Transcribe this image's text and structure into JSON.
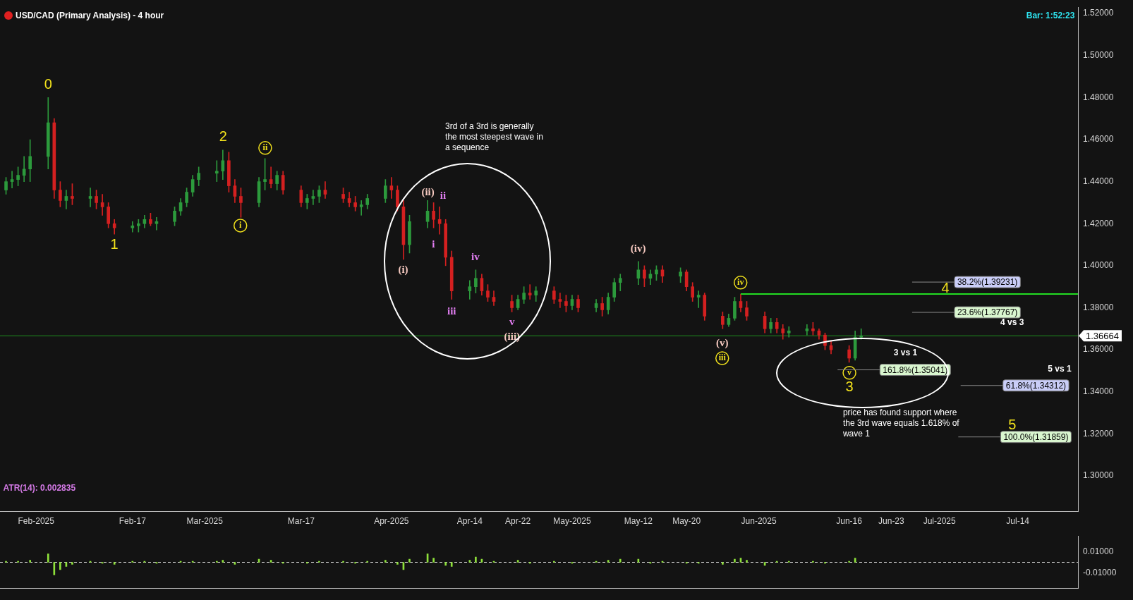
{
  "chart_data": [
    {
      "type": "candlestick",
      "title": "USD/CAD (Primary Analysis) - 4 hour",
      "x": [
        "2025-01-27",
        "2025-01-28",
        "2025-01-29",
        "2025-01-30",
        "2025-01-31",
        "2025-02-03",
        "2025-02-04",
        "2025-02-05",
        "2025-02-06",
        "2025-02-07",
        "2025-02-10",
        "2025-02-11",
        "2025-02-12",
        "2025-02-13",
        "2025-02-14",
        "2025-02-17",
        "2025-02-18",
        "2025-02-19",
        "2025-02-20",
        "2025-02-21",
        "2025-02-24",
        "2025-02-25",
        "2025-02-26",
        "2025-02-27",
        "2025-02-28",
        "2025-03-03",
        "2025-03-04",
        "2025-03-05",
        "2025-03-06",
        "2025-03-07",
        "2025-03-10",
        "2025-03-11",
        "2025-03-12",
        "2025-03-13",
        "2025-03-14",
        "2025-03-17",
        "2025-03-18",
        "2025-03-19",
        "2025-03-20",
        "2025-03-21",
        "2025-03-24",
        "2025-03-25",
        "2025-03-26",
        "2025-03-27",
        "2025-03-28",
        "2025-03-31",
        "2025-04-01",
        "2025-04-02",
        "2025-04-03",
        "2025-04-04",
        "2025-04-07",
        "2025-04-08",
        "2025-04-09",
        "2025-04-10",
        "2025-04-11",
        "2025-04-14",
        "2025-04-15",
        "2025-04-16",
        "2025-04-17",
        "2025-04-18",
        "2025-04-21",
        "2025-04-22",
        "2025-04-23",
        "2025-04-24",
        "2025-04-25",
        "2025-04-28",
        "2025-04-29",
        "2025-04-30",
        "2025-05-01",
        "2025-05-02",
        "2025-05-05",
        "2025-05-06",
        "2025-05-07",
        "2025-05-08",
        "2025-05-09",
        "2025-05-12",
        "2025-05-13",
        "2025-05-14",
        "2025-05-15",
        "2025-05-16",
        "2025-05-19",
        "2025-05-20",
        "2025-05-21",
        "2025-05-22",
        "2025-05-23",
        "2025-05-26",
        "2025-05-27",
        "2025-05-28",
        "2025-05-29",
        "2025-05-30",
        "2025-06-02",
        "2025-06-03",
        "2025-06-04",
        "2025-06-05",
        "2025-06-06",
        "2025-06-09",
        "2025-06-10",
        "2025-06-11",
        "2025-06-12",
        "2025-06-13",
        "2025-06-16",
        "2025-06-17",
        "2025-06-18"
      ],
      "ohlc": [
        [
          1.436,
          1.442,
          1.434,
          1.44
        ],
        [
          1.44,
          1.445,
          1.437,
          1.441
        ],
        [
          1.441,
          1.447,
          1.438,
          1.443
        ],
        [
          1.443,
          1.452,
          1.44,
          1.446
        ],
        [
          1.446,
          1.46,
          1.44,
          1.452
        ],
        [
          1.452,
          1.48,
          1.446,
          1.468
        ],
        [
          1.468,
          1.47,
          1.432,
          1.436
        ],
        [
          1.436,
          1.44,
          1.428,
          1.431
        ],
        [
          1.431,
          1.436,
          1.427,
          1.433
        ],
        [
          1.433,
          1.439,
          1.429,
          1.432
        ],
        [
          1.432,
          1.437,
          1.428,
          1.433
        ],
        [
          1.433,
          1.436,
          1.427,
          1.43
        ],
        [
          1.43,
          1.434,
          1.424,
          1.428
        ],
        [
          1.428,
          1.43,
          1.418,
          1.42
        ],
        [
          1.42,
          1.422,
          1.415,
          1.418
        ],
        [
          1.418,
          1.421,
          1.416,
          1.419
        ],
        [
          1.419,
          1.422,
          1.416,
          1.42
        ],
        [
          1.42,
          1.424,
          1.418,
          1.422
        ],
        [
          1.422,
          1.425,
          1.419,
          1.42
        ],
        [
          1.42,
          1.423,
          1.417,
          1.421
        ],
        [
          1.421,
          1.428,
          1.419,
          1.426
        ],
        [
          1.426,
          1.432,
          1.424,
          1.43
        ],
        [
          1.43,
          1.437,
          1.428,
          1.435
        ],
        [
          1.435,
          1.443,
          1.433,
          1.441
        ],
        [
          1.441,
          1.447,
          1.438,
          1.444
        ],
        [
          1.444,
          1.45,
          1.44,
          1.445
        ],
        [
          1.445,
          1.455,
          1.441,
          1.45
        ],
        [
          1.45,
          1.454,
          1.435,
          1.438
        ],
        [
          1.438,
          1.441,
          1.43,
          1.433
        ],
        [
          1.433,
          1.437,
          1.423,
          1.43
        ],
        [
          1.43,
          1.442,
          1.428,
          1.44
        ],
        [
          1.44,
          1.451,
          1.436,
          1.441
        ],
        [
          1.441,
          1.447,
          1.437,
          1.439
        ],
        [
          1.439,
          1.445,
          1.436,
          1.443
        ],
        [
          1.443,
          1.445,
          1.434,
          1.436
        ],
        [
          1.436,
          1.438,
          1.428,
          1.43
        ],
        [
          1.43,
          1.434,
          1.427,
          1.432
        ],
        [
          1.432,
          1.436,
          1.429,
          1.433
        ],
        [
          1.433,
          1.438,
          1.43,
          1.436
        ],
        [
          1.436,
          1.44,
          1.432,
          1.434
        ],
        [
          1.434,
          1.437,
          1.43,
          1.432
        ],
        [
          1.432,
          1.435,
          1.428,
          1.43
        ],
        [
          1.43,
          1.433,
          1.426,
          1.428
        ],
        [
          1.428,
          1.431,
          1.424,
          1.429
        ],
        [
          1.429,
          1.434,
          1.427,
          1.432
        ],
        [
          1.432,
          1.441,
          1.43,
          1.438
        ],
        [
          1.438,
          1.442,
          1.432,
          1.436
        ],
        [
          1.436,
          1.438,
          1.426,
          1.428
        ],
        [
          1.428,
          1.431,
          1.403,
          1.41
        ],
        [
          1.41,
          1.424,
          1.406,
          1.421
        ],
        [
          1.421,
          1.431,
          1.418,
          1.426
        ],
        [
          1.426,
          1.43,
          1.418,
          1.422
        ],
        [
          1.422,
          1.428,
          1.415,
          1.42
        ],
        [
          1.42,
          1.422,
          1.4,
          1.404
        ],
        [
          1.404,
          1.407,
          1.384,
          1.388
        ],
        [
          1.388,
          1.393,
          1.384,
          1.39
        ],
        [
          1.39,
          1.398,
          1.387,
          1.394
        ],
        [
          1.394,
          1.396,
          1.386,
          1.388
        ],
        [
          1.388,
          1.391,
          1.383,
          1.385
        ],
        [
          1.385,
          1.388,
          1.381,
          1.383
        ],
        [
          1.383,
          1.386,
          1.378,
          1.38
        ],
        [
          1.38,
          1.386,
          1.379,
          1.384
        ],
        [
          1.384,
          1.39,
          1.382,
          1.387
        ],
        [
          1.387,
          1.391,
          1.384,
          1.386
        ],
        [
          1.386,
          1.39,
          1.383,
          1.388
        ],
        [
          1.388,
          1.39,
          1.382,
          1.384
        ],
        [
          1.384,
          1.387,
          1.38,
          1.383
        ],
        [
          1.383,
          1.386,
          1.378,
          1.381
        ],
        [
          1.381,
          1.386,
          1.379,
          1.384
        ],
        [
          1.384,
          1.386,
          1.378,
          1.38
        ],
        [
          1.38,
          1.384,
          1.378,
          1.382
        ],
        [
          1.382,
          1.385,
          1.376,
          1.379
        ],
        [
          1.379,
          1.387,
          1.377,
          1.385
        ],
        [
          1.385,
          1.394,
          1.383,
          1.392
        ],
        [
          1.392,
          1.396,
          1.388,
          1.394
        ],
        [
          1.394,
          1.402,
          1.391,
          1.398
        ],
        [
          1.398,
          1.4,
          1.39,
          1.394
        ],
        [
          1.394,
          1.398,
          1.391,
          1.396
        ],
        [
          1.396,
          1.4,
          1.393,
          1.398
        ],
        [
          1.398,
          1.4,
          1.392,
          1.395
        ],
        [
          1.395,
          1.399,
          1.392,
          1.397
        ],
        [
          1.397,
          1.398,
          1.388,
          1.39
        ],
        [
          1.39,
          1.392,
          1.383,
          1.385
        ],
        [
          1.385,
          1.388,
          1.38,
          1.386
        ],
        [
          1.386,
          1.387,
          1.374,
          1.376
        ],
        [
          1.376,
          1.378,
          1.37,
          1.372
        ],
        [
          1.372,
          1.377,
          1.371,
          1.375
        ],
        [
          1.375,
          1.385,
          1.374,
          1.383
        ],
        [
          1.383,
          1.3865,
          1.378,
          1.38
        ],
        [
          1.38,
          1.383,
          1.374,
          1.376
        ],
        [
          1.376,
          1.378,
          1.368,
          1.37
        ],
        [
          1.37,
          1.375,
          1.368,
          1.373
        ],
        [
          1.373,
          1.375,
          1.368,
          1.37
        ],
        [
          1.37,
          1.372,
          1.365,
          1.368
        ],
        [
          1.368,
          1.371,
          1.366,
          1.369
        ],
        [
          1.369,
          1.372,
          1.367,
          1.37
        ],
        [
          1.37,
          1.373,
          1.367,
          1.369
        ],
        [
          1.369,
          1.37,
          1.365,
          1.367
        ],
        [
          1.367,
          1.368,
          1.36,
          1.362
        ],
        [
          1.362,
          1.364,
          1.358,
          1.36
        ],
        [
          1.36,
          1.362,
          1.354,
          1.356
        ],
        [
          1.356,
          1.369,
          1.355,
          1.366
        ],
        [
          1.366,
          1.37,
          1.365,
          1.36664
        ]
      ],
      "series": [
        {
          "type": "line",
          "color": "#22dd22",
          "x": [
            "2025-05-29",
            "2025-07-24"
          ],
          "values": [
            1.3865,
            1.3865
          ]
        }
      ],
      "xlim": [
        "2025-01-26",
        "2025-07-24"
      ],
      "xticks": [
        {
          "value": "2025-02-01",
          "label": "Feb-2025"
        },
        {
          "value": "2025-02-17",
          "label": "Feb-17"
        },
        {
          "value": "2025-03-01",
          "label": "Mar-2025"
        },
        {
          "value": "2025-03-17",
          "label": "Mar-17"
        },
        {
          "value": "2025-04-01",
          "label": "Apr-2025"
        },
        {
          "value": "2025-04-14",
          "label": "Apr-14"
        },
        {
          "value": "2025-04-22",
          "label": "Apr-22"
        },
        {
          "value": "2025-05-01",
          "label": "May-2025"
        },
        {
          "value": "2025-05-12",
          "label": "May-12"
        },
        {
          "value": "2025-05-20",
          "label": "May-20"
        },
        {
          "value": "2025-06-01",
          "label": "Jun-2025"
        },
        {
          "value": "2025-06-16",
          "label": "Jun-16"
        },
        {
          "value": "2025-06-23",
          "label": "Jun-23"
        },
        {
          "value": "2025-07-01",
          "label": "Jul-2025"
        },
        {
          "value": "2025-07-14",
          "label": "Jul-14"
        }
      ],
      "ylim": [
        1.283,
        1.523
      ],
      "yticks": [
        {
          "value": 1.3,
          "label": "1.30000"
        },
        {
          "value": 1.32,
          "label": "1.32000"
        },
        {
          "value": 1.34,
          "label": "1.34000"
        },
        {
          "value": 1.36,
          "label": "1.36000"
        },
        {
          "value": 1.38,
          "label": "1.38000"
        },
        {
          "value": 1.4,
          "label": "1.40000"
        },
        {
          "value": 1.42,
          "label": "1.42000"
        },
        {
          "value": 1.44,
          "label": "1.44000"
        },
        {
          "value": 1.46,
          "label": "1.46000"
        },
        {
          "value": 1.48,
          "label": "1.48000"
        },
        {
          "value": 1.5,
          "label": "1.50000"
        },
        {
          "value": 1.52,
          "label": "1.52000"
        }
      ],
      "ref_lines": [
        {
          "axis": "y",
          "value": 1.36664,
          "label": "1.36664",
          "color": "#1f8f1f"
        }
      ],
      "annotations": [
        "Bar: 1:52:23",
        "ATR(14): 0.002835",
        "0",
        "1",
        "2",
        "i",
        "ii",
        "(i)",
        "(ii)",
        "i",
        "ii",
        "iii",
        "iv",
        "v",
        "(iii)",
        "(iv)",
        "(v)",
        "iii",
        "iv",
        "v",
        "3",
        "4",
        "5",
        "3rd of a 3rd is generally\nthe most steepest wave in\na sequence",
        "price has found support where\nthe 3rd wave equals 1.618% of\nwave 1",
        "4 vs 3",
        "3 vs 1",
        "5 vs 1",
        "38.2%(1.39231)",
        "23.6%(1.37767)",
        "161.8%(1.35041)",
        "61.8%(1.34312)",
        "100.0%(1.31859)"
      ]
    },
    {
      "type": "bar",
      "color": "#8ee03a",
      "x": [
        "2025-01-27",
        "2025-01-29",
        "2025-01-31",
        "2025-02-03",
        "2025-02-04",
        "2025-02-05",
        "2025-02-06",
        "2025-02-07",
        "2025-02-10",
        "2025-02-12",
        "2025-02-14",
        "2025-02-17",
        "2025-02-19",
        "2025-02-21",
        "2025-02-25",
        "2025-02-27",
        "2025-03-03",
        "2025-03-04",
        "2025-03-06",
        "2025-03-10",
        "2025-03-12",
        "2025-03-14",
        "2025-03-18",
        "2025-03-20",
        "2025-03-24",
        "2025-03-26",
        "2025-03-28",
        "2025-03-31",
        "2025-04-02",
        "2025-04-03",
        "2025-04-04",
        "2025-04-07",
        "2025-04-08",
        "2025-04-10",
        "2025-04-11",
        "2025-04-14",
        "2025-04-15",
        "2025-04-16",
        "2025-04-18",
        "2025-04-22",
        "2025-04-24",
        "2025-04-28",
        "2025-05-01",
        "2025-05-05",
        "2025-05-07",
        "2025-05-09",
        "2025-05-12",
        "2025-05-14",
        "2025-05-16",
        "2025-05-20",
        "2025-05-22",
        "2025-05-26",
        "2025-05-28",
        "2025-05-29",
        "2025-05-30",
        "2025-06-02",
        "2025-06-04",
        "2025-06-06",
        "2025-06-10",
        "2025-06-12",
        "2025-06-16",
        "2025-06-17"
      ],
      "values": [
        0.001,
        0.001,
        0.002,
        0.008,
        -0.012,
        -0.007,
        -0.004,
        -0.002,
        0.001,
        -0.001,
        -0.002,
        0.001,
        0.001,
        -0.001,
        0.001,
        0.001,
        0.001,
        0.002,
        -0.002,
        0.003,
        0.002,
        -0.001,
        -0.001,
        0.001,
        0.001,
        -0.001,
        0.001,
        0.002,
        -0.002,
        -0.007,
        0.003,
        0.008,
        0.004,
        -0.003,
        -0.004,
        0.002,
        0.005,
        0.003,
        0.001,
        0.002,
        -0.001,
        0.001,
        -0.001,
        0.001,
        0.002,
        0.003,
        0.003,
        -0.001,
        0.001,
        -0.001,
        -0.001,
        -0.002,
        0.003,
        0.004,
        0.002,
        -0.003,
        0.001,
        0.001,
        0.001,
        -0.001,
        0.001,
        0.004
      ],
      "xlim": [
        "2025-01-26",
        "2025-07-24"
      ],
      "ylim": [
        -0.025,
        0.025
      ],
      "yticks": [
        {
          "value": -0.01,
          "label": "-0.01000"
        },
        {
          "value": 0.01,
          "label": "0.01000"
        }
      ],
      "ref_lines": [
        {
          "axis": "y",
          "value": 0,
          "color": "#dddddd",
          "line_style": "dashed"
        }
      ],
      "tick_labels": "y"
    }
  ]
}
